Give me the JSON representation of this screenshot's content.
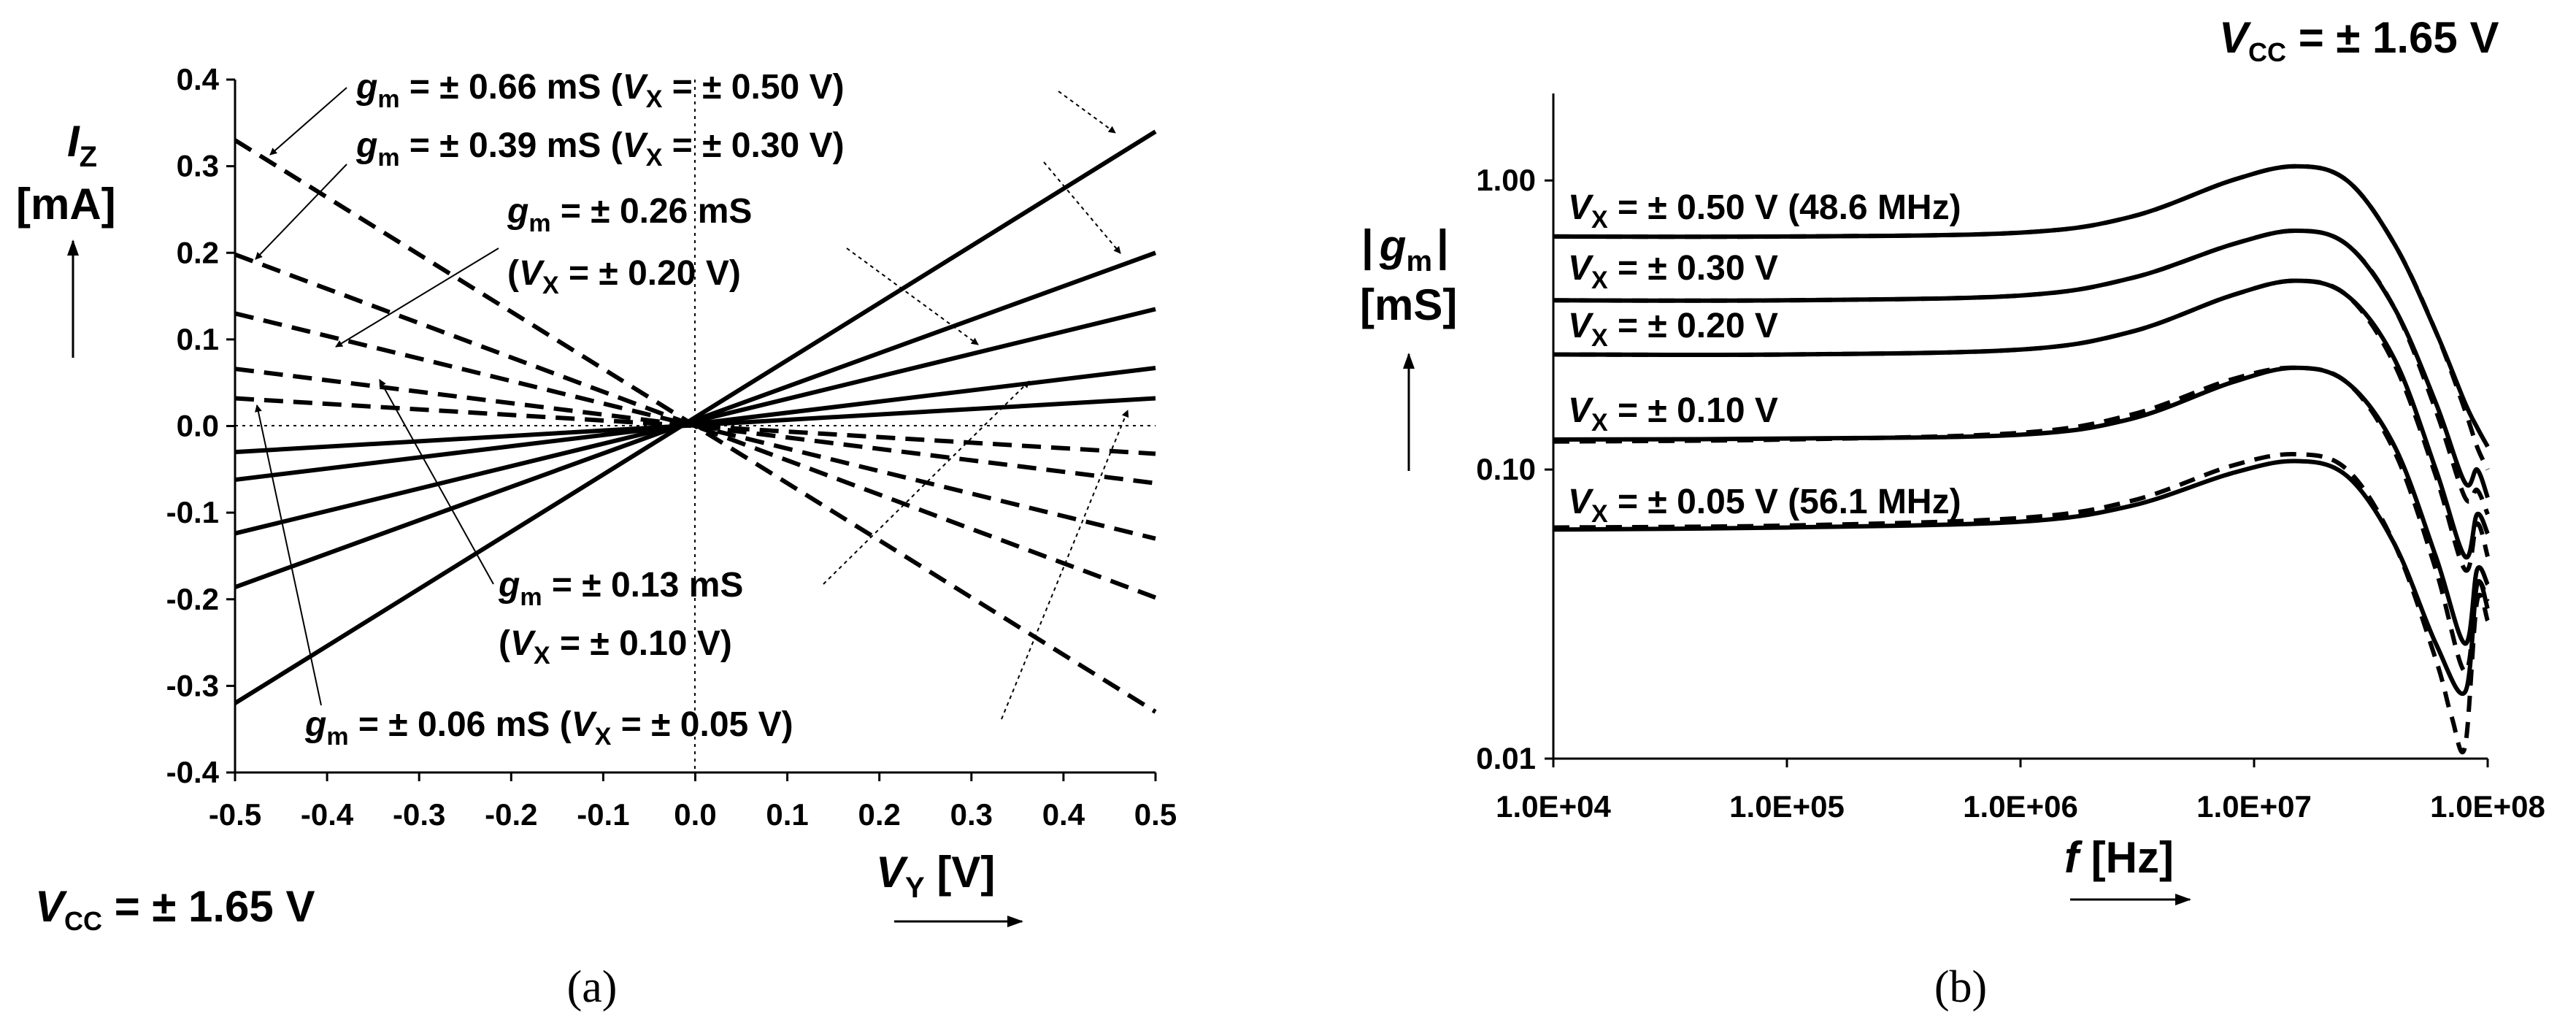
{
  "chart_data": [
    {
      "type": "line",
      "caption": "(a)",
      "xlabel": "V",
      "xlabel_sub": "Y",
      "xlabel_unit": " [V]",
      "ylabel_sym": "I",
      "ylabel_sub": "Z",
      "ylabel_unit": "[mA]",
      "xlim": [
        -0.5,
        0.5
      ],
      "ylim": [
        -0.4,
        0.4
      ],
      "xticks": [
        "-0.5",
        "-0.4",
        "-0.3",
        "-0.2",
        "-0.1",
        "0.0",
        "0.1",
        "0.2",
        "0.3",
        "0.4",
        "0.5"
      ],
      "yticks": [
        "0.4",
        "0.3",
        "0.2",
        "0.1",
        "0.0",
        "-0.1",
        "-0.2",
        "-0.3",
        "-0.4"
      ],
      "x": [
        -0.5,
        0.5
      ],
      "series": [
        {
          "vx": "+0.50",
          "style": "solid",
          "values": [
            -0.32,
            0.34
          ]
        },
        {
          "vx": "+0.30",
          "style": "solid",
          "values": [
            -0.186,
            0.2
          ]
        },
        {
          "vx": "+0.20",
          "style": "solid",
          "values": [
            -0.124,
            0.135
          ]
        },
        {
          "vx": "+0.10",
          "style": "solid",
          "values": [
            -0.062,
            0.067
          ]
        },
        {
          "vx": "+0.05",
          "style": "solid",
          "values": [
            -0.03,
            0.032
          ]
        },
        {
          "vx": "-0.50",
          "style": "dashed",
          "values": [
            0.33,
            -0.33
          ]
        },
        {
          "vx": "-0.30",
          "style": "dashed",
          "values": [
            0.198,
            -0.198
          ]
        },
        {
          "vx": "-0.20",
          "style": "dashed",
          "values": [
            0.13,
            -0.13
          ]
        },
        {
          "vx": "-0.10",
          "style": "dashed",
          "values": [
            0.066,
            -0.066
          ]
        },
        {
          "vx": "-0.05",
          "style": "dashed",
          "values": [
            0.032,
            -0.032
          ]
        }
      ],
      "annotations": {
        "a066": {
          "pre": "g",
          "sub": "m",
          "mid": " = ± 0.66 mS (",
          "vsym": "V",
          "vsub": "X",
          "post": " = ± 0.50 V)"
        },
        "a039": {
          "pre": "g",
          "sub": "m",
          "mid": " = ± 0.39 mS (",
          "vsym": "V",
          "vsub": "X",
          "post": " = ± 0.30 V)"
        },
        "a026": {
          "pre": "g",
          "sub": "m",
          "mid": " = ± 0.26 mS",
          "vsym": "V",
          "vsub": "X",
          "post": " = ± 0.20 V)",
          "open": "("
        },
        "a013": {
          "pre": "g",
          "sub": "m",
          "mid": " = ± 0.13 mS",
          "vsym": "V",
          "vsub": "X",
          "post": " = ± 0.10 V)",
          "open": "("
        },
        "a006": {
          "pre": "g",
          "sub": "m",
          "mid": " = ± 0.06 mS (",
          "vsym": "V",
          "vsub": "X",
          "post": " = ± 0.05 V)"
        }
      },
      "vcc": {
        "sym": "V",
        "sub": "CC",
        "text": " = ± 1.65 V"
      }
    },
    {
      "type": "line",
      "caption": "(b)",
      "xlabel": "f",
      "xlabel_unit": " [Hz]",
      "ylabel_open": "|",
      "ylabel_sym": "g",
      "ylabel_sub": "m",
      "ylabel_close": "|",
      "ylabel_unit": "[mS]",
      "xscale": "log",
      "yscale": "log",
      "xlim": [
        10000,
        100000000
      ],
      "ylim": [
        0.01,
        2.0
      ],
      "xticks": [
        "1.0E+04",
        "1.0E+05",
        "1.0E+06",
        "1.0E+07",
        "1.0E+08"
      ],
      "yticks": [
        "1.00",
        "0.10",
        "0.01"
      ],
      "series": [
        {
          "label": " = ± 0.50 V (48.6 MHz)",
          "style": "solid",
          "x": [
            10000,
            100000,
            1000000,
            3000000,
            8000000,
            15000000,
            25000000,
            40000000,
            60000000,
            80000000,
            90000000,
            100000000
          ],
          "values": [
            0.64,
            0.64,
            0.66,
            0.75,
            1.0,
            1.12,
            1.0,
            0.6,
            0.3,
            0.17,
            0.14,
            0.12
          ]
        },
        {
          "label": " = ± 0.50 V (48.6 MHz)",
          "style": "dashed",
          "x": [
            10000,
            100000,
            1000000,
            3000000,
            8000000,
            15000000,
            25000000,
            40000000,
            60000000,
            80000000,
            90000000,
            100000000
          ],
          "values": [
            0.64,
            0.64,
            0.66,
            0.75,
            1.0,
            1.12,
            1.0,
            0.6,
            0.3,
            0.16,
            0.12,
            0.1
          ]
        },
        {
          "label": " = ± 0.30 V",
          "style": "solid",
          "x": [
            10000,
            100000,
            1000000,
            3000000,
            8000000,
            15000000,
            25000000,
            40000000,
            60000000,
            80000000,
            90000000,
            100000000
          ],
          "values": [
            0.385,
            0.385,
            0.4,
            0.46,
            0.6,
            0.67,
            0.6,
            0.36,
            0.17,
            0.09,
            0.1,
            0.08
          ]
        },
        {
          "label": " = ± 0.30 V",
          "style": "dashed",
          "x": [
            10000,
            100000,
            1000000,
            3000000,
            8000000,
            15000000,
            25000000,
            40000000,
            60000000,
            80000000,
            90000000,
            100000000
          ],
          "values": [
            0.385,
            0.385,
            0.4,
            0.46,
            0.6,
            0.67,
            0.6,
            0.36,
            0.16,
            0.08,
            0.085,
            0.07
          ]
        },
        {
          "label": " = ± 0.20 V",
          "style": "solid",
          "x": [
            10000,
            100000,
            1000000,
            3000000,
            8000000,
            15000000,
            25000000,
            40000000,
            60000000,
            80000000,
            90000000,
            100000000
          ],
          "values": [
            0.25,
            0.25,
            0.26,
            0.3,
            0.4,
            0.45,
            0.4,
            0.24,
            0.1,
            0.05,
            0.07,
            0.06
          ]
        },
        {
          "label": " = ± 0.20 V",
          "style": "dashed",
          "x": [
            10000,
            100000,
            1000000,
            3000000,
            8000000,
            15000000,
            25000000,
            40000000,
            60000000,
            80000000,
            90000000,
            100000000
          ],
          "values": [
            0.25,
            0.25,
            0.26,
            0.3,
            0.4,
            0.45,
            0.4,
            0.23,
            0.095,
            0.045,
            0.065,
            0.05
          ]
        },
        {
          "label": " = ± 0.10 V",
          "style": "solid",
          "x": [
            10000,
            100000,
            1000000,
            3000000,
            8000000,
            15000000,
            25000000,
            40000000,
            60000000,
            80000000,
            90000000,
            100000000
          ],
          "values": [
            0.127,
            0.128,
            0.132,
            0.15,
            0.2,
            0.225,
            0.2,
            0.12,
            0.05,
            0.025,
            0.045,
            0.04
          ]
        },
        {
          "label": " = ± 0.10 V",
          "style": "dashed",
          "x": [
            10000,
            100000,
            1000000,
            3000000,
            8000000,
            15000000,
            25000000,
            40000000,
            60000000,
            80000000,
            90000000,
            100000000
          ],
          "values": [
            0.125,
            0.127,
            0.134,
            0.155,
            0.205,
            0.225,
            0.2,
            0.115,
            0.045,
            0.02,
            0.04,
            0.035
          ]
        },
        {
          "label": " = ± 0.05 V (56.1 MHz)",
          "style": "solid",
          "x": [
            10000,
            100000,
            1000000,
            3000000,
            8000000,
            15000000,
            25000000,
            40000000,
            60000000,
            80000000,
            90000000,
            100000000
          ],
          "values": [
            0.062,
            0.063,
            0.066,
            0.075,
            0.097,
            0.107,
            0.095,
            0.055,
            0.025,
            0.017,
            0.04,
            0.033
          ]
        },
        {
          "label": " = ± 0.05 V (56.1 MHz)",
          "style": "dashed",
          "x": [
            10000,
            100000,
            1000000,
            3000000,
            8000000,
            15000000,
            25000000,
            40000000,
            60000000,
            70000000,
            80000000,
            90000000,
            100000000
          ],
          "values": [
            0.063,
            0.064,
            0.068,
            0.078,
            0.103,
            0.113,
            0.1,
            0.055,
            0.022,
            0.014,
            0.011,
            0.035,
            0.03
          ]
        }
      ],
      "labels": [
        {
          "sym": "V",
          "sub": "X",
          "text": " = ± 0.50 V (48.6 MHz)"
        },
        {
          "sym": "V",
          "sub": "X",
          "text": " = ± 0.30 V"
        },
        {
          "sym": "V",
          "sub": "X",
          "text": " = ± 0.20 V"
        },
        {
          "sym": "V",
          "sub": "X",
          "text": " = ± 0.10 V"
        },
        {
          "sym": "V",
          "sub": "X",
          "text": " = ± 0.05 V (56.1 MHz)"
        }
      ],
      "vcc": {
        "sym": "V",
        "sub": "CC",
        "text": " = ± 1.65 V"
      }
    }
  ]
}
